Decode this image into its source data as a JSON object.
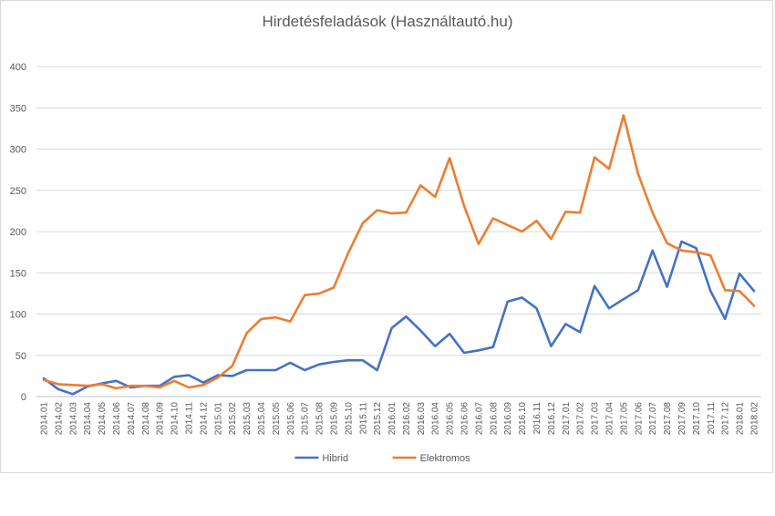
{
  "chart_data": {
    "type": "line",
    "title": "Hirdetésfeladások (Használtautó.hu)",
    "xlabel": "",
    "ylabel": "",
    "ylim": [
      0,
      400
    ],
    "yticks": [
      0,
      50,
      100,
      150,
      200,
      250,
      300,
      350,
      400
    ],
    "grid": "horizontal",
    "legend_position": "bottom",
    "x": [
      "2014.01",
      "2014.02",
      "2014.03",
      "2014.04",
      "2014.05",
      "2014.06",
      "2014.07",
      "2014.08",
      "2014.09",
      "2014.10",
      "2014.11",
      "2014.12",
      "2015.01",
      "2015.02",
      "2015.03",
      "2015.04",
      "2015.05",
      "2015.06",
      "2015.07",
      "2015.08",
      "2015.09",
      "2015.10",
      "2015.11",
      "2015.12",
      "2016.01",
      "2016.02",
      "2016.03",
      "2016.04",
      "2016.05",
      "2016.06",
      "2016.07",
      "2016.08",
      "2016.09",
      "2016.10",
      "2016.11",
      "2016.12",
      "2017.01",
      "2017.02",
      "2017.03",
      "2017.04",
      "2017.05",
      "2017.06",
      "2017.07",
      "2017.08",
      "2017.09",
      "2017.10",
      "2017.11",
      "2017.12",
      "2018.01",
      "2018.02"
    ],
    "series": [
      {
        "name": "Hibrid",
        "color": "#4472c4",
        "values": [
          22,
          9,
          3,
          12,
          16,
          19,
          11,
          13,
          13,
          24,
          26,
          17,
          26,
          25,
          32,
          32,
          32,
          41,
          32,
          39,
          42,
          44,
          44,
          32,
          83,
          97,
          80,
          61,
          76,
          53,
          56,
          60,
          115,
          120,
          107,
          61,
          88,
          78,
          134,
          107,
          118,
          129,
          177,
          133,
          188,
          180,
          128,
          94,
          149,
          128
        ]
      },
      {
        "name": "Elektromos",
        "color": "#ed7d31",
        "values": [
          20,
          15,
          14,
          13,
          15,
          10,
          13,
          13,
          11,
          19,
          11,
          14,
          23,
          37,
          77,
          94,
          96,
          91,
          123,
          125,
          132,
          174,
          210,
          226,
          222,
          223,
          256,
          242,
          289,
          231,
          185,
          216,
          208,
          200,
          213,
          191,
          224,
          223,
          290,
          276,
          341,
          270,
          223,
          186,
          177,
          175,
          171,
          129,
          128,
          110
        ]
      }
    ]
  }
}
